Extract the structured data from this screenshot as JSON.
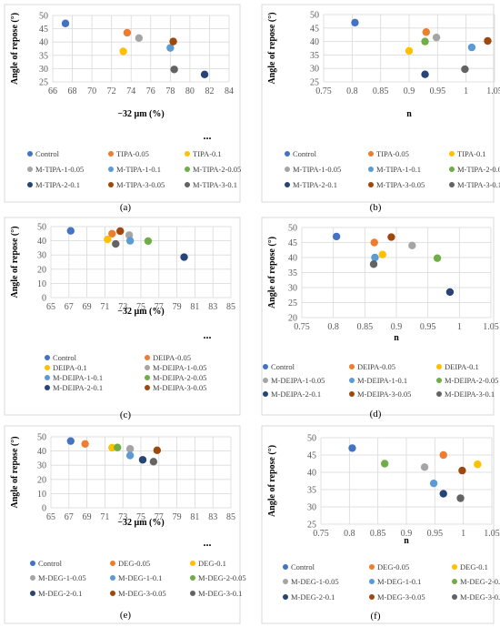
{
  "chart_data": [
    {
      "type": "scatter",
      "panel_label": "(a)",
      "xlabel": "−32 µm (%)",
      "ylabel": "Angle of repose (°)",
      "xlim": [
        66,
        84
      ],
      "ylim": [
        25,
        50
      ],
      "xticks": [
        "66",
        "68",
        "70",
        "72",
        "74",
        "76",
        "78",
        "80",
        "82",
        "84"
      ],
      "yticks": [
        "25",
        "30",
        "35",
        "40",
        "45",
        "50"
      ],
      "grid": true,
      "legend_position": "bottom",
      "legend_suffix": "...",
      "series": [
        {
          "name": "Control",
          "color": "#4472c4",
          "x": 67.3,
          "y": 47.0
        },
        {
          "name": "TIPA-0.05",
          "color": "#ed7d31",
          "x": 73.6,
          "y": 43.5
        },
        {
          "name": "TIPA-0.1",
          "color": "#ffc000",
          "x": 73.2,
          "y": 36.5
        },
        {
          "name": "M-TIPA-1-0.05",
          "color": "#a5a5a5",
          "x": 74.8,
          "y": 41.5
        },
        {
          "name": "M-TIPA-1-0.1",
          "color": "#5b9bd5",
          "x": 78.0,
          "y": 37.8
        },
        {
          "name": "M-TIPA-2-0.05",
          "color": "#70ad47",
          "x": null,
          "y": null
        },
        {
          "name": "M-TIPA-2-0.1",
          "color": "#264478",
          "x": 81.5,
          "y": 27.8
        },
        {
          "name": "M-TIPA-3-0.05",
          "color": "#9e480e",
          "x": 78.3,
          "y": 40.2
        },
        {
          "name": "M-TIPA-3-0.1",
          "color": "#636363",
          "x": 78.4,
          "y": 29.7
        }
      ]
    },
    {
      "type": "scatter",
      "panel_label": "(b)",
      "xlabel": "n",
      "ylabel": "Angle of repose (°)",
      "xlim": [
        0.75,
        1.05
      ],
      "ylim": [
        25,
        50
      ],
      "xticks": [
        "0.75",
        "0.8",
        "0.85",
        "0.9",
        "0.95",
        "1",
        "1.05"
      ],
      "yticks": [
        "25",
        "30",
        "35",
        "40",
        "45",
        "50"
      ],
      "grid": true,
      "legend_position": "bottom",
      "series": [
        {
          "name": "Control",
          "color": "#4472c4",
          "x": 0.805,
          "y": 47.0
        },
        {
          "name": "TIPA-0.05",
          "color": "#ed7d31",
          "x": 0.93,
          "y": 43.5
        },
        {
          "name": "TIPA-0.1",
          "color": "#ffc000",
          "x": 0.9,
          "y": 36.5
        },
        {
          "name": "M-TIPA-1-0.05",
          "color": "#a5a5a5",
          "x": 0.948,
          "y": 41.5
        },
        {
          "name": "M-TIPA-1-0.1",
          "color": "#5b9bd5",
          "x": 1.01,
          "y": 37.8
        },
        {
          "name": "M-TIPA-2-0.05",
          "color": "#70ad47",
          "x": 0.928,
          "y": 40.0
        },
        {
          "name": "M-TIPA-2-0.1",
          "color": "#264478",
          "x": 0.928,
          "y": 27.8
        },
        {
          "name": "M-TIPA-3-0.05",
          "color": "#9e480e",
          "x": 1.038,
          "y": 40.2
        },
        {
          "name": "M-TIPA-3-0.1",
          "color": "#636363",
          "x": 0.998,
          "y": 29.7
        }
      ]
    },
    {
      "type": "scatter",
      "panel_label": "(c)",
      "xlabel": "−32 µm (%)",
      "ylabel": "Angle of repose (°)",
      "xlim": [
        65,
        85
      ],
      "ylim": [
        0,
        50
      ],
      "xticks": [
        "65",
        "67",
        "69",
        "71",
        "73",
        "75",
        "77",
        "79",
        "81",
        "83",
        "85"
      ],
      "yticks": [
        "0",
        "10",
        "20",
        "30",
        "40",
        "50"
      ],
      "grid": true,
      "legend_position": "bottom",
      "legend_suffix": "...",
      "series": [
        {
          "name": "Control",
          "color": "#4472c4",
          "x": 67.2,
          "y": 47.0
        },
        {
          "name": "DEIPA-0.05",
          "color": "#ed7d31",
          "x": 71.8,
          "y": 45.0
        },
        {
          "name": "DEIPA-0.1",
          "color": "#ffc000",
          "x": 71.3,
          "y": 41.0
        },
        {
          "name": "M-DEIPA-1-0.05",
          "color": "#a5a5a5",
          "x": 73.7,
          "y": 44.0
        },
        {
          "name": "M-DEIPA-1-0.1",
          "color": "#5b9bd5",
          "x": 73.8,
          "y": 40.0
        },
        {
          "name": "M-DEIPA-2-0.05",
          "color": "#70ad47",
          "x": 75.8,
          "y": 39.8
        },
        {
          "name": "M-DEIPA-2-0.1",
          "color": "#264478",
          "x": 79.8,
          "y": 28.5
        },
        {
          "name": "M-DEIPA-3-0.05",
          "color": "#9e480e",
          "x": 72.7,
          "y": 46.8
        },
        {
          "name": "M-DEIPA-3-0.1",
          "color": "#636363",
          "x": 72.2,
          "y": 37.8
        }
      ]
    },
    {
      "type": "scatter",
      "panel_label": "(d)",
      "xlabel": "n",
      "ylabel": "Angle of repose (°)",
      "xlim": [
        0.75,
        1.05
      ],
      "ylim": [
        20,
        50
      ],
      "xticks": [
        "0.75",
        "0.8",
        "0.85",
        "0.9",
        "0.95",
        "1",
        "1.05"
      ],
      "yticks": [
        "20",
        "25",
        "30",
        "35",
        "40",
        "45",
        "50"
      ],
      "grid": true,
      "legend_position": "bottom",
      "series": [
        {
          "name": "Control",
          "color": "#4472c4",
          "x": 0.805,
          "y": 47.0
        },
        {
          "name": "DEIPA-0.05",
          "color": "#ed7d31",
          "x": 0.865,
          "y": 45.0
        },
        {
          "name": "DEIPA-0.1",
          "color": "#ffc000",
          "x": 0.878,
          "y": 41.0
        },
        {
          "name": "M-DEIPA-1-0.05",
          "color": "#a5a5a5",
          "x": 0.925,
          "y": 44.0
        },
        {
          "name": "M-DEIPA-1-0.1",
          "color": "#5b9bd5",
          "x": 0.866,
          "y": 40.0
        },
        {
          "name": "M-DEIPA-2-0.05",
          "color": "#70ad47",
          "x": 0.965,
          "y": 39.8
        },
        {
          "name": "M-DEIPA-2-0.1",
          "color": "#264478",
          "x": 0.985,
          "y": 28.5
        },
        {
          "name": "M-DEIPA-3-0.05",
          "color": "#9e480e",
          "x": 0.892,
          "y": 46.8
        },
        {
          "name": "M-DEIPA-3-0.1",
          "color": "#636363",
          "x": 0.864,
          "y": 37.8
        }
      ]
    },
    {
      "type": "scatter",
      "panel_label": "(e)",
      "xlabel": "−32 µm (%)",
      "ylabel": "Angle of repose (°)",
      "xlim": [
        65,
        85
      ],
      "ylim": [
        0,
        50
      ],
      "xticks": [
        "65",
        "67",
        "69",
        "71",
        "73",
        "75",
        "77",
        "79",
        "81",
        "83",
        "85"
      ],
      "yticks": [
        "0",
        "10",
        "20",
        "30",
        "40",
        "50"
      ],
      "grid": true,
      "legend_position": "bottom",
      "legend_suffix": "...",
      "series": [
        {
          "name": "Control",
          "color": "#4472c4",
          "x": 67.2,
          "y": 47.0
        },
        {
          "name": "DEG-0.05",
          "color": "#ed7d31",
          "x": 68.8,
          "y": 45.0
        },
        {
          "name": "DEG-0.1",
          "color": "#ffc000",
          "x": 71.8,
          "y": 42.3
        },
        {
          "name": "M-DEG-1-0.05",
          "color": "#a5a5a5",
          "x": 73.8,
          "y": 41.5
        },
        {
          "name": "M-DEG-1-0.1",
          "color": "#5b9bd5",
          "x": 73.8,
          "y": 36.8
        },
        {
          "name": "M-DEG-2-0.05",
          "color": "#70ad47",
          "x": 72.4,
          "y": 42.5
        },
        {
          "name": "M-DEG-2-0.1",
          "color": "#264478",
          "x": 75.2,
          "y": 33.8
        },
        {
          "name": "M-DEG-3-0.05",
          "color": "#9e480e",
          "x": 76.8,
          "y": 40.5
        },
        {
          "name": "M-DEG-3-0.1",
          "color": "#636363",
          "x": 76.4,
          "y": 32.5
        }
      ]
    },
    {
      "type": "scatter",
      "panel_label": "(f)",
      "xlabel": "n",
      "ylabel": "Angle of repose (°)",
      "xlim": [
        0.75,
        1.05
      ],
      "ylim": [
        25,
        50
      ],
      "xticks": [
        "0.75",
        "0.8",
        "0.85",
        "0.9",
        "0.95",
        "1",
        "1.05"
      ],
      "yticks": [
        "25",
        "30",
        "35",
        "40",
        "45",
        "50"
      ],
      "grid": true,
      "legend_position": "bottom",
      "series": [
        {
          "name": "Control",
          "color": "#4472c4",
          "x": 0.805,
          "y": 47.0
        },
        {
          "name": "DEG-0.05",
          "color": "#ed7d31",
          "x": 0.965,
          "y": 45.0
        },
        {
          "name": "DEG-0.1",
          "color": "#ffc000",
          "x": 1.025,
          "y": 42.3
        },
        {
          "name": "M-DEG-1-0.05",
          "color": "#a5a5a5",
          "x": 0.932,
          "y": 41.5
        },
        {
          "name": "M-DEG-1-0.1",
          "color": "#5b9bd5",
          "x": 0.948,
          "y": 36.8
        },
        {
          "name": "M-DEG-2-0.05",
          "color": "#70ad47",
          "x": 0.862,
          "y": 42.5
        },
        {
          "name": "M-DEG-2-0.1",
          "color": "#264478",
          "x": 0.965,
          "y": 33.8
        },
        {
          "name": "M-DEG-3-0.05",
          "color": "#9e480e",
          "x": 0.998,
          "y": 40.5
        },
        {
          "name": "M-DEG-3-0.1",
          "color": "#636363",
          "x": 0.995,
          "y": 32.5
        }
      ]
    }
  ]
}
